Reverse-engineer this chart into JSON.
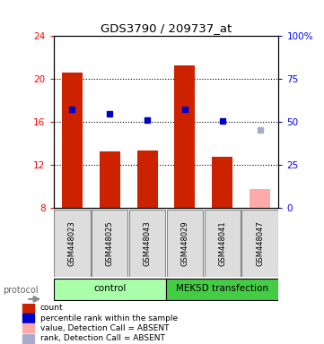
{
  "title": "GDS3790 / 209737_at",
  "samples": [
    "GSM448023",
    "GSM448025",
    "GSM448043",
    "GSM448029",
    "GSM448041",
    "GSM448047"
  ],
  "bar_values": [
    20.6,
    13.3,
    13.4,
    21.3,
    12.8,
    null
  ],
  "bar_absent": [
    null,
    null,
    null,
    null,
    null,
    9.8
  ],
  "rank_values": [
    17.2,
    16.8,
    16.2,
    17.2,
    16.1,
    null
  ],
  "rank_absent": [
    null,
    null,
    null,
    null,
    null,
    15.3
  ],
  "bar_bottom": 8,
  "ylim_left": [
    8,
    24
  ],
  "ylim_right": [
    0,
    100
  ],
  "yticks_left": [
    8,
    12,
    16,
    20,
    24
  ],
  "yticks_right": [
    0,
    25,
    50,
    75,
    100
  ],
  "yticklabels_right": [
    "0",
    "25",
    "50",
    "75",
    "100%"
  ],
  "bar_color": "#CC2200",
  "bar_absent_color": "#FFAAAA",
  "rank_color": "#0000CC",
  "rank_absent_color": "#AAAACC",
  "ctrl_color": "#AAFFAA",
  "mek_color": "#44CC44",
  "legend_items": [
    {
      "label": "count",
      "color": "#CC2200"
    },
    {
      "label": "percentile rank within the sample",
      "color": "#0000CC"
    },
    {
      "label": "value, Detection Call = ABSENT",
      "color": "#FFAAAA"
    },
    {
      "label": "rank, Detection Call = ABSENT",
      "color": "#AAAACC"
    }
  ],
  "bar_width": 0.55
}
